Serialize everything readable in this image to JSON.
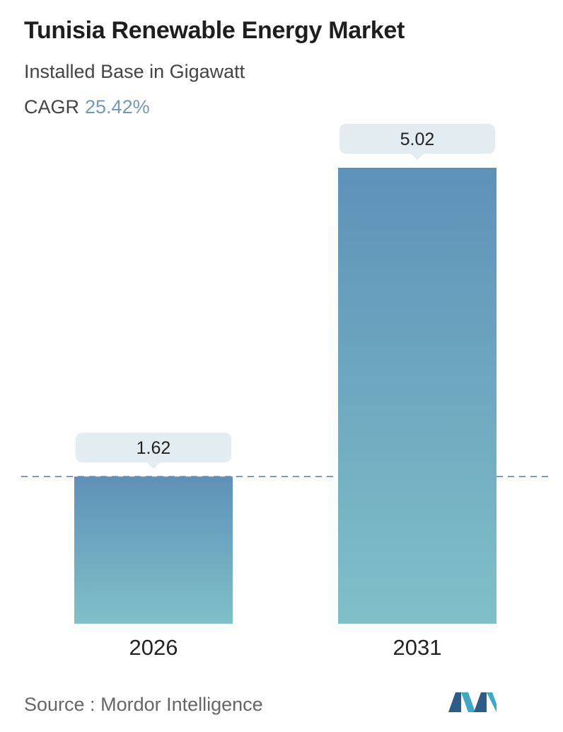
{
  "header": {
    "title": "Tunisia Renewable Energy Market",
    "subtitle": "Installed Base in Gigawatt",
    "cagr_label": "CAGR",
    "cagr_value": "25.42%"
  },
  "chart_data": {
    "type": "bar",
    "categories": [
      "2026",
      "2031"
    ],
    "values": [
      1.62,
      5.02
    ],
    "value_labels": [
      "1.62",
      "5.02"
    ],
    "ylim": [
      0,
      5.02
    ],
    "grid": false,
    "reference_line": {
      "value": 1.62,
      "style": "dashed"
    },
    "colors": {
      "bar_top": "#5e91b8",
      "bar_bottom": "#7fc0c8",
      "label_bg": "#e3ecf0",
      "reference_line": "#5e88aa"
    }
  },
  "footer": {
    "source_label": "Source :",
    "source_name": "Mordor Intelligence",
    "logo_icon": "mordor-intelligence-logo-icon",
    "logo_colors": [
      "#2b5d86",
      "#3fa7c8"
    ]
  }
}
